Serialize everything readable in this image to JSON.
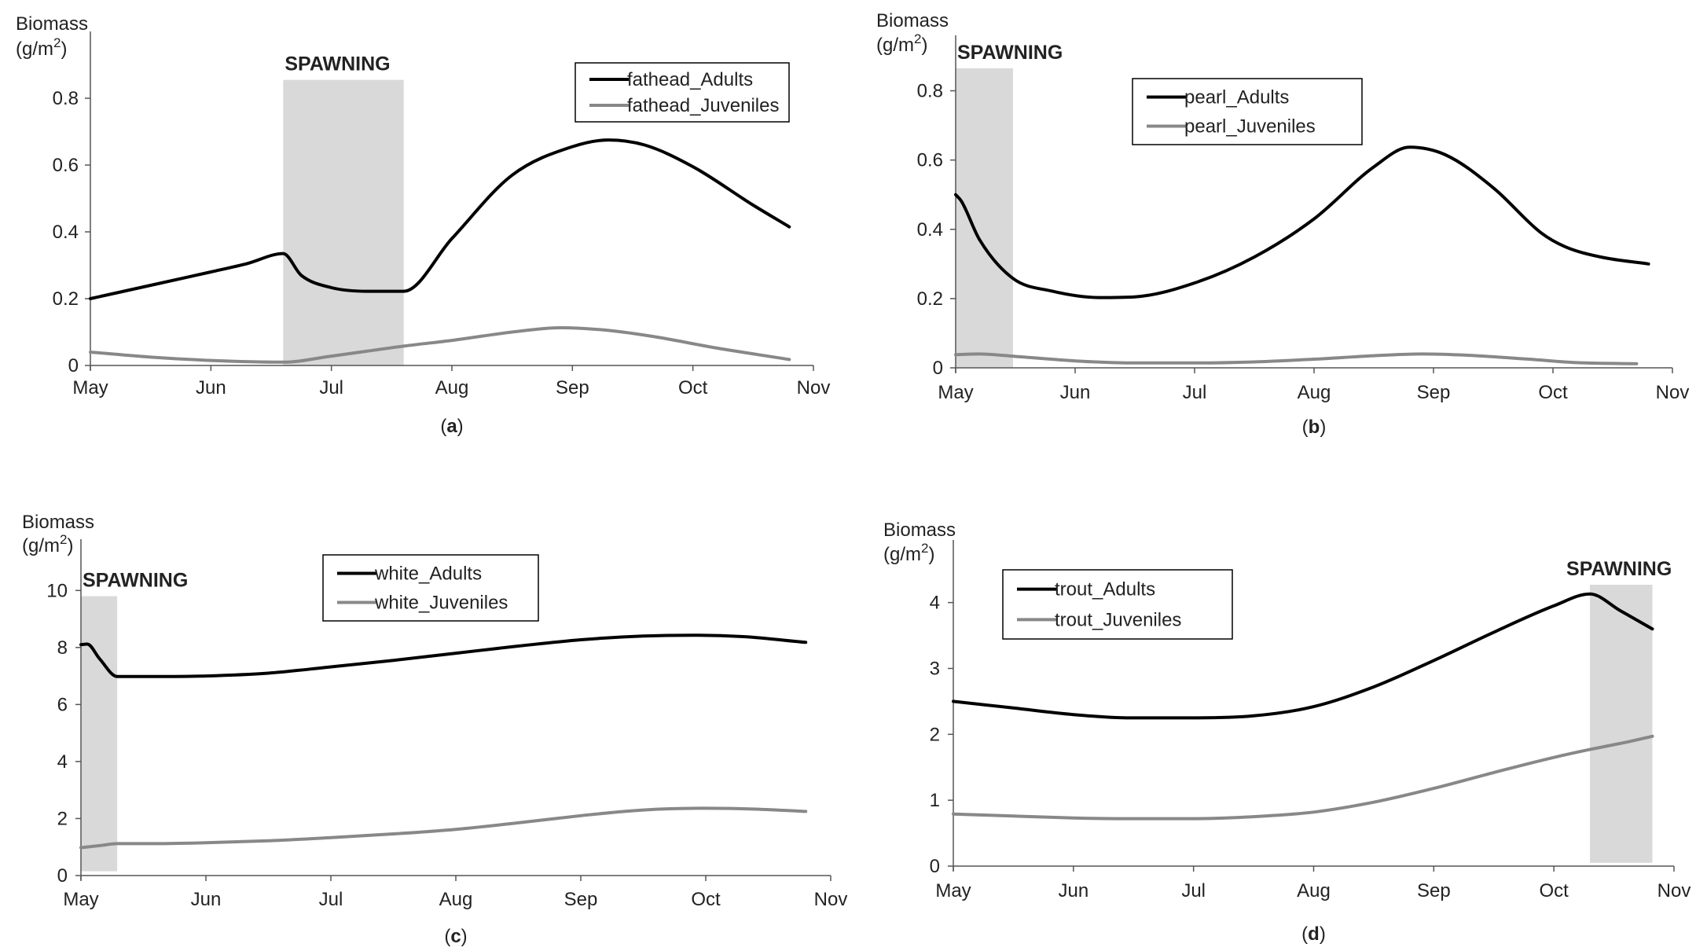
{
  "colors": {
    "adults": "#000000",
    "juveniles": "#888888",
    "spawning": "#d9d9d9",
    "axis": "#555555"
  },
  "chart_data": [
    {
      "type": "line",
      "panel_label": "a",
      "ylabel": "Biomass",
      "ylabel_unit_base": "(g/m",
      "ylabel_unit_sup": "2",
      "ylabel_unit_close": ")",
      "x_ticks": [
        "May",
        "Jun",
        "Jul",
        "Aug",
        "Sep",
        "Oct",
        "Nov"
      ],
      "xlim": [
        0,
        6
      ],
      "ylim": [
        0,
        1.0
      ],
      "y_ticks": [
        0,
        0.2,
        0.4,
        0.6,
        0.8
      ],
      "y_tick_labels": [
        "0",
        "0.2",
        "0.4",
        "0.6",
        "0.8"
      ],
      "spawning": {
        "label": "SPAWNING",
        "x_start": 1.6,
        "x_end": 2.6,
        "y_top": 0.855
      },
      "legend_position": "top-right",
      "series": [
        {
          "name": "fathead_Adults",
          "role": "adults",
          "points": [
            [
              0,
              0.2
            ],
            [
              0.5,
              0.24
            ],
            [
              1.0,
              0.28
            ],
            [
              1.3,
              0.305
            ],
            [
              1.6,
              0.335
            ],
            [
              1.75,
              0.27
            ],
            [
              2.0,
              0.233
            ],
            [
              2.3,
              0.222
            ],
            [
              2.6,
              0.222
            ],
            [
              3.0,
              0.38
            ],
            [
              3.5,
              0.57
            ],
            [
              4.0,
              0.655
            ],
            [
              4.3,
              0.675
            ],
            [
              4.6,
              0.66
            ],
            [
              5.0,
              0.595
            ],
            [
              5.5,
              0.48
            ],
            [
              5.8,
              0.415
            ]
          ]
        },
        {
          "name": "fathead_Juveniles",
          "role": "juveniles",
          "points": [
            [
              0,
              0.04
            ],
            [
              0.5,
              0.025
            ],
            [
              1.0,
              0.015
            ],
            [
              1.6,
              0.01
            ],
            [
              2.0,
              0.028
            ],
            [
              2.6,
              0.058
            ],
            [
              3.0,
              0.075
            ],
            [
              3.5,
              0.1
            ],
            [
              3.9,
              0.113
            ],
            [
              4.3,
              0.105
            ],
            [
              4.7,
              0.085
            ],
            [
              5.2,
              0.052
            ],
            [
              5.8,
              0.018
            ]
          ]
        }
      ]
    },
    {
      "type": "line",
      "panel_label": "b",
      "ylabel": "Biomass",
      "ylabel_unit_base": "(g/m",
      "ylabel_unit_sup": "2",
      "ylabel_unit_close": ")",
      "x_ticks": [
        "May",
        "Jun",
        "Jul",
        "Aug",
        "Sep",
        "Oct",
        "Nov"
      ],
      "xlim": [
        0,
        6
      ],
      "ylim": [
        0,
        0.96
      ],
      "y_ticks": [
        0,
        0.2,
        0.4,
        0.6,
        0.8
      ],
      "y_tick_labels": [
        "0",
        "0.2",
        "0.4",
        "0.6",
        "0.8"
      ],
      "spawning": {
        "label": "SPAWNING",
        "x_start": 0.0,
        "x_end": 0.48,
        "y_top": 0.865
      },
      "legend_position": "top-center",
      "series": [
        {
          "name": "pearl_Adults",
          "role": "adults",
          "points": [
            [
              0,
              0.5
            ],
            [
              0.05,
              0.48
            ],
            [
              0.2,
              0.37
            ],
            [
              0.48,
              0.258
            ],
            [
              0.8,
              0.222
            ],
            [
              1.2,
              0.203
            ],
            [
              1.5,
              0.205
            ],
            [
              2.0,
              0.245
            ],
            [
              2.5,
              0.32
            ],
            [
              3.0,
              0.43
            ],
            [
              3.5,
              0.58
            ],
            [
              3.8,
              0.637
            ],
            [
              4.1,
              0.615
            ],
            [
              4.5,
              0.52
            ],
            [
              4.9,
              0.39
            ],
            [
              5.1,
              0.35
            ],
            [
              5.4,
              0.32
            ],
            [
              5.8,
              0.3
            ]
          ]
        },
        {
          "name": "pearl_Juveniles",
          "role": "juveniles",
          "points": [
            [
              0,
              0.038
            ],
            [
              0.2,
              0.04
            ],
            [
              0.5,
              0.033
            ],
            [
              1.0,
              0.02
            ],
            [
              1.5,
              0.014
            ],
            [
              2.0,
              0.014
            ],
            [
              2.5,
              0.017
            ],
            [
              3.0,
              0.025
            ],
            [
              3.5,
              0.035
            ],
            [
              3.9,
              0.04
            ],
            [
              4.3,
              0.036
            ],
            [
              4.8,
              0.025
            ],
            [
              5.2,
              0.015
            ],
            [
              5.7,
              0.012
            ]
          ]
        }
      ]
    },
    {
      "type": "line",
      "panel_label": "c",
      "ylabel": "Biomass",
      "ylabel_unit_base": "(g/m",
      "ylabel_unit_sup": "2",
      "ylabel_unit_close": ")",
      "x_ticks": [
        "May",
        "Jun",
        "Jul",
        "Aug",
        "Sep",
        "Oct",
        "Nov"
      ],
      "xlim": [
        0,
        6
      ],
      "ylim": [
        0,
        11.8
      ],
      "y_ticks": [
        0,
        2,
        4,
        6,
        8,
        10
      ],
      "y_tick_labels": [
        "0",
        "2",
        "4",
        "6",
        "8",
        "10"
      ],
      "spawning": {
        "label": "SPAWNING",
        "x_start": 0.0,
        "x_end": 0.29,
        "y_top": 9.8,
        "y_bottom": 0.15
      },
      "legend_position": "top-center",
      "series": [
        {
          "name": "white_Adults",
          "role": "adults",
          "points": [
            [
              0,
              8.1
            ],
            [
              0.05,
              8.12
            ],
            [
              0.15,
              7.6
            ],
            [
              0.29,
              6.98
            ],
            [
              0.6,
              6.98
            ],
            [
              1.0,
              7.0
            ],
            [
              1.5,
              7.1
            ],
            [
              2.0,
              7.32
            ],
            [
              2.5,
              7.55
            ],
            [
              3.0,
              7.8
            ],
            [
              3.5,
              8.05
            ],
            [
              4.0,
              8.27
            ],
            [
              4.5,
              8.4
            ],
            [
              4.9,
              8.43
            ],
            [
              5.3,
              8.38
            ],
            [
              5.8,
              8.18
            ]
          ]
        },
        {
          "name": "white_Juveniles",
          "role": "juveniles",
          "points": [
            [
              0,
              0.98
            ],
            [
              0.15,
              1.05
            ],
            [
              0.29,
              1.12
            ],
            [
              0.6,
              1.12
            ],
            [
              1.0,
              1.15
            ],
            [
              1.5,
              1.22
            ],
            [
              2.0,
              1.33
            ],
            [
              2.5,
              1.46
            ],
            [
              3.0,
              1.62
            ],
            [
              3.5,
              1.85
            ],
            [
              4.0,
              2.1
            ],
            [
              4.5,
              2.3
            ],
            [
              5.0,
              2.36
            ],
            [
              5.4,
              2.33
            ],
            [
              5.8,
              2.25
            ]
          ]
        }
      ]
    },
    {
      "type": "line",
      "panel_label": "d",
      "ylabel": "Biomass",
      "ylabel_unit_base": "(g/m",
      "ylabel_unit_sup": "2",
      "ylabel_unit_close": ")",
      "x_ticks": [
        "May",
        "Jun",
        "Jul",
        "Aug",
        "Sep",
        "Oct",
        "Nov"
      ],
      "xlim": [
        0,
        6
      ],
      "ylim": [
        0,
        4.95
      ],
      "y_ticks": [
        0,
        1,
        2,
        3,
        4
      ],
      "y_tick_labels": [
        "0",
        "1",
        "2",
        "3",
        "4"
      ],
      "spawning": {
        "label": "SPAWNING",
        "x_start": 5.3,
        "x_end": 5.82,
        "y_top": 4.27,
        "y_bottom": 0.05
      },
      "legend_position": "top-left",
      "series": [
        {
          "name": "trout_Adults",
          "role": "adults",
          "points": [
            [
              0,
              2.5
            ],
            [
              0.5,
              2.4
            ],
            [
              1.0,
              2.3
            ],
            [
              1.5,
              2.25
            ],
            [
              2.0,
              2.25
            ],
            [
              2.5,
              2.28
            ],
            [
              3.0,
              2.42
            ],
            [
              3.5,
              2.72
            ],
            [
              4.0,
              3.12
            ],
            [
              4.5,
              3.55
            ],
            [
              5.0,
              3.95
            ],
            [
              5.3,
              4.13
            ],
            [
              5.55,
              3.88
            ],
            [
              5.82,
              3.6
            ]
          ]
        },
        {
          "name": "trout_Juveniles",
          "role": "juveniles",
          "points": [
            [
              0,
              0.79
            ],
            [
              0.5,
              0.76
            ],
            [
              1.0,
              0.73
            ],
            [
              1.5,
              0.72
            ],
            [
              2.0,
              0.72
            ],
            [
              2.5,
              0.75
            ],
            [
              3.0,
              0.82
            ],
            [
              3.5,
              0.97
            ],
            [
              4.0,
              1.18
            ],
            [
              4.5,
              1.42
            ],
            [
              5.0,
              1.65
            ],
            [
              5.3,
              1.77
            ],
            [
              5.6,
              1.88
            ],
            [
              5.82,
              1.97
            ]
          ]
        }
      ]
    }
  ]
}
